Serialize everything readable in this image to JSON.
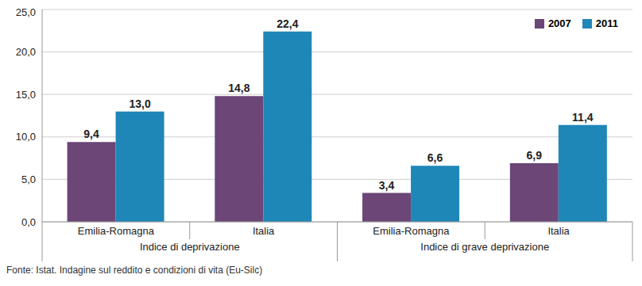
{
  "chart_data": {
    "type": "bar",
    "categories": [
      "Emilia-Romagna",
      "Italia",
      "Emilia-Romagna",
      "Italia"
    ],
    "category_groups": [
      "Indice di deprivazione",
      "Indice di deprivazione",
      "Indice di grave deprivazione",
      "Indice di grave deprivazione"
    ],
    "series": [
      {
        "name": "2007",
        "color": "#6b4677",
        "values": [
          9.4,
          14.8,
          3.4,
          6.9
        ],
        "value_labels": [
          "9,4",
          "14,8",
          "3,4",
          "6,9"
        ]
      },
      {
        "name": "2011",
        "color": "#1f86b8",
        "values": [
          13.0,
          22.4,
          6.6,
          11.4
        ],
        "value_labels": [
          "13,0",
          "22,4",
          "6,6",
          "11,4"
        ]
      }
    ],
    "ylim": [
      0,
      25
    ],
    "yticks": [
      {
        "value": 0,
        "label": "0,0"
      },
      {
        "value": 5,
        "label": "5,0"
      },
      {
        "value": 10,
        "label": "10,0"
      },
      {
        "value": 15,
        "label": "15,0"
      },
      {
        "value": 20,
        "label": "20,0"
      },
      {
        "value": 25,
        "label": "25,0"
      }
    ],
    "grid": true,
    "legend": "upper right",
    "data_labels": true,
    "note": "Fonte: Istat. Indagine sul reddito e condizioni di vita (Eu-Silc)"
  }
}
